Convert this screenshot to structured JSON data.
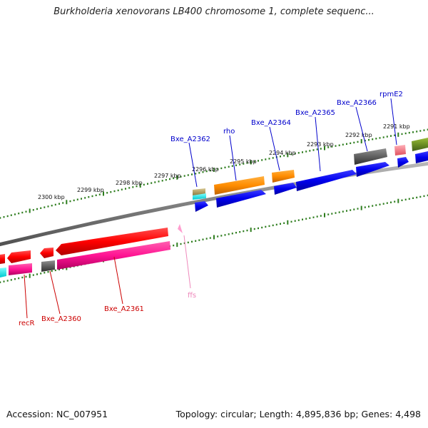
{
  "title": "Burkholderia xenovorans LB400 chromosome 1, complete sequenc...",
  "footer": {
    "accession": "Accession: NC_007951",
    "summary": "Topology: circular; Length: 4,895,836 bp; Genes: 4,498"
  },
  "ticks": [
    {
      "label": "2300 kbp"
    },
    {
      "label": "2299 kbp"
    },
    {
      "label": "2298 kbp"
    },
    {
      "label": "2297 kbp"
    },
    {
      "label": "2296 kbp"
    },
    {
      "label": "2295 kbp"
    },
    {
      "label": "2294 kbp"
    },
    {
      "label": "2293 kbp"
    },
    {
      "label": "2292 kbp"
    },
    {
      "label": "2291 kbp"
    }
  ],
  "gene_labels_top": [
    {
      "text": "Bxe_A2362",
      "color": "#0000cc"
    },
    {
      "text": "rho",
      "color": "#0000cc"
    },
    {
      "text": "Bxe_A2364",
      "color": "#0000cc"
    },
    {
      "text": "Bxe_A2365",
      "color": "#0000cc"
    },
    {
      "text": "Bxe_A2366",
      "color": "#0000cc"
    },
    {
      "text": "rpmE2",
      "color": "#0000cc"
    }
  ],
  "gene_labels_bottom": [
    {
      "text": "recR",
      "color": "#cc0000"
    },
    {
      "text": "Bxe_A2360",
      "color": "#cc0000"
    },
    {
      "text": "Bxe_A2361",
      "color": "#cc0000"
    },
    {
      "text": "ffs",
      "color": "#ee88bb"
    }
  ],
  "colors": {
    "backbone": "#808080",
    "tick": "#2e7d1e",
    "forward_cds": "#0000ee",
    "forward_gene": "#ff8c00",
    "reverse_cds": "#ff1493",
    "reverse_gene": "#ff0000",
    "pseudo": "#555555",
    "trna": "#00e5ee",
    "rrna": "#6b8e23"
  }
}
